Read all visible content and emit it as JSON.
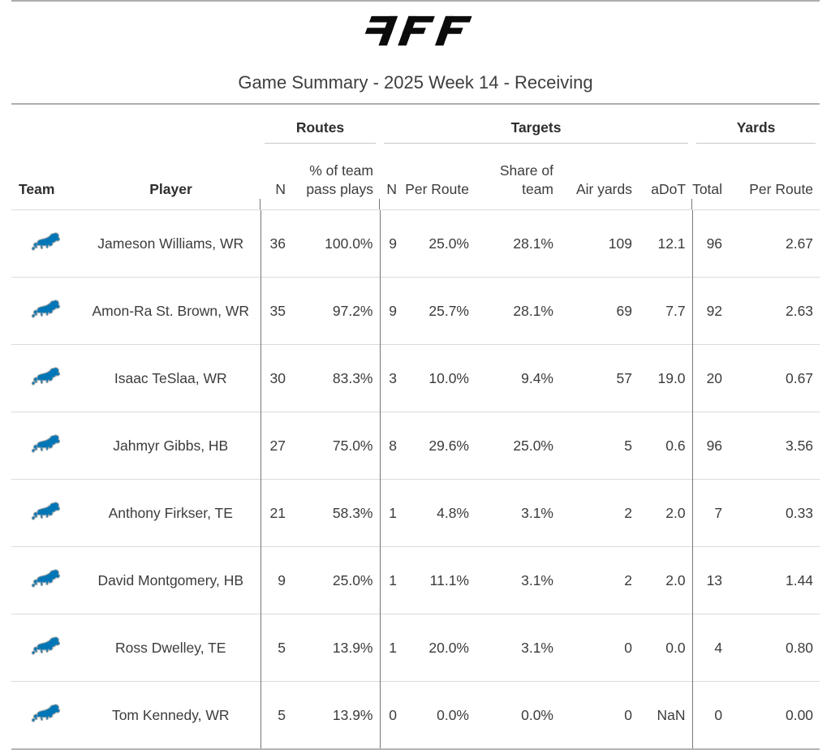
{
  "header": {
    "logo_text": "PFF"
  },
  "title": "Game Summary - 2025 Week 14 - Receiving",
  "headers": {
    "team": "Team",
    "player": "Player",
    "routes": "Routes",
    "targets": "Targets",
    "yards": "Yards",
    "routes_n": "N",
    "routes_pct": "% of team pass plays",
    "targets_n": "N",
    "targets_per_route": "Per Route",
    "targets_share": "Share of team",
    "air_yards": "Air yards",
    "adot": "aDoT",
    "yards_total": "Total",
    "yards_per_route": "Per Route"
  },
  "team": {
    "name": "Detroit Lions",
    "logo_icon": "detroit-lions-logo",
    "primary_color": "#0076b6",
    "outline_color": "#a5acaf"
  },
  "chart_data": {
    "type": "table",
    "title": "Game Summary - 2025 Week 14 - Receiving",
    "column_groups": [
      {
        "label": "Routes",
        "columns": [
          "N",
          "% of team pass plays"
        ]
      },
      {
        "label": "Targets",
        "columns": [
          "N",
          "Per Route",
          "Share of team",
          "Air yards",
          "aDoT"
        ]
      },
      {
        "label": "Yards",
        "columns": [
          "Total",
          "Per Route"
        ]
      }
    ],
    "columns": [
      "Team",
      "Player",
      "Routes N",
      "Routes % of team pass plays",
      "Targets N",
      "Targets Per Route",
      "Targets Share of team",
      "Air yards",
      "aDoT",
      "Yards Total",
      "Yards Per Route"
    ],
    "rows": [
      {
        "team": "Detroit Lions",
        "player": "Jameson Williams, WR",
        "routes_n": "36",
        "routes_pct": "100.0%",
        "targets_n": "9",
        "targets_per_route": "25.0%",
        "targets_share": "28.1%",
        "air_yards": "109",
        "adot": "12.1",
        "yards_total": "96",
        "yards_per_route": "2.67"
      },
      {
        "team": "Detroit Lions",
        "player": "Amon-Ra St. Brown, WR",
        "routes_n": "35",
        "routes_pct": "97.2%",
        "targets_n": "9",
        "targets_per_route": "25.7%",
        "targets_share": "28.1%",
        "air_yards": "69",
        "adot": "7.7",
        "yards_total": "92",
        "yards_per_route": "2.63"
      },
      {
        "team": "Detroit Lions",
        "player": "Isaac TeSlaa, WR",
        "routes_n": "30",
        "routes_pct": "83.3%",
        "targets_n": "3",
        "targets_per_route": "10.0%",
        "targets_share": "9.4%",
        "air_yards": "57",
        "adot": "19.0",
        "yards_total": "20",
        "yards_per_route": "0.67"
      },
      {
        "team": "Detroit Lions",
        "player": "Jahmyr Gibbs, HB",
        "routes_n": "27",
        "routes_pct": "75.0%",
        "targets_n": "8",
        "targets_per_route": "29.6%",
        "targets_share": "25.0%",
        "air_yards": "5",
        "adot": "0.6",
        "yards_total": "96",
        "yards_per_route": "3.56"
      },
      {
        "team": "Detroit Lions",
        "player": "Anthony Firkser, TE",
        "routes_n": "21",
        "routes_pct": "58.3%",
        "targets_n": "1",
        "targets_per_route": "4.8%",
        "targets_share": "3.1%",
        "air_yards": "2",
        "adot": "2.0",
        "yards_total": "7",
        "yards_per_route": "0.33"
      },
      {
        "team": "Detroit Lions",
        "player": "David Montgomery, HB",
        "routes_n": "9",
        "routes_pct": "25.0%",
        "targets_n": "1",
        "targets_per_route": "11.1%",
        "targets_share": "3.1%",
        "air_yards": "2",
        "adot": "2.0",
        "yards_total": "13",
        "yards_per_route": "1.44"
      },
      {
        "team": "Detroit Lions",
        "player": "Ross Dwelley, TE",
        "routes_n": "5",
        "routes_pct": "13.9%",
        "targets_n": "1",
        "targets_per_route": "20.0%",
        "targets_share": "3.1%",
        "air_yards": "0",
        "adot": "0.0",
        "yards_total": "4",
        "yards_per_route": "0.80"
      },
      {
        "team": "Detroit Lions",
        "player": "Tom Kennedy, WR",
        "routes_n": "5",
        "routes_pct": "13.9%",
        "targets_n": "0",
        "targets_per_route": "0.0%",
        "targets_share": "0.0%",
        "air_yards": "0",
        "adot": "NaN",
        "yards_total": "0",
        "yards_per_route": "0.00"
      }
    ]
  }
}
